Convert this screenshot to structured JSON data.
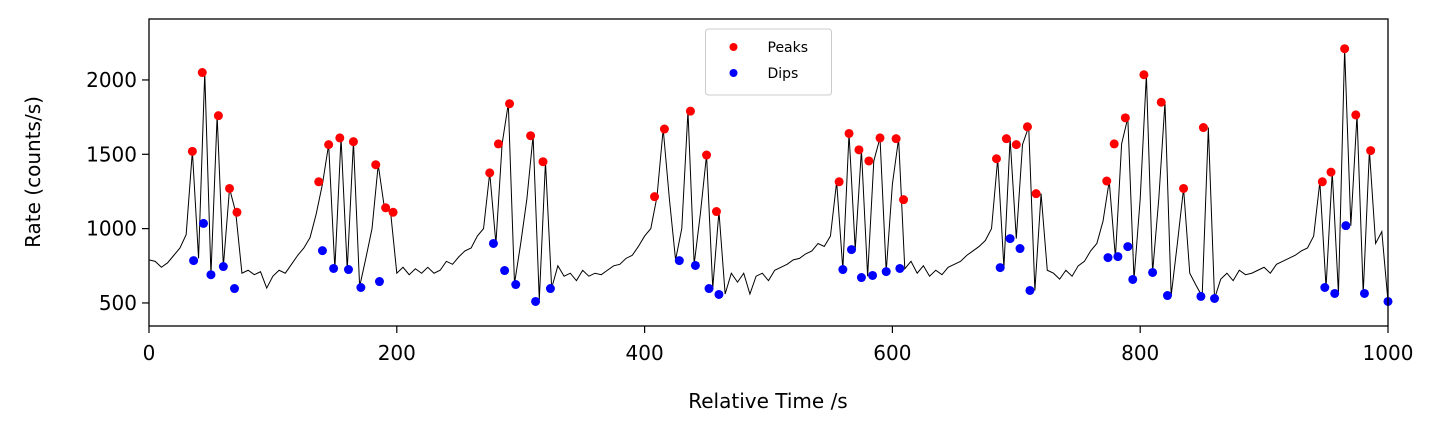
{
  "chart_data": {
    "type": "line",
    "xlabel": "Relative Time /s",
    "ylabel": "Rate (counts/s)",
    "xlim": [
      0,
      1000
    ],
    "ylim": [
      345,
      2410
    ],
    "xticks": [
      0,
      200,
      400,
      600,
      800,
      1000
    ],
    "yticks": [
      500,
      1000,
      1500,
      2000
    ],
    "legend": "upper center",
    "series": [
      {
        "type": "line",
        "color": "#000000",
        "x": [
          0,
          5,
          10,
          15,
          20,
          25,
          30,
          35,
          40,
          45,
          50,
          55,
          60,
          65,
          70,
          75,
          80,
          85,
          90,
          95,
          100,
          105,
          110,
          115,
          120,
          125,
          130,
          135,
          140,
          145,
          150,
          155,
          160,
          165,
          170,
          175,
          180,
          185,
          190,
          195,
          200,
          205,
          210,
          215,
          220,
          225,
          230,
          235,
          240,
          245,
          250,
          255,
          260,
          265,
          270,
          275,
          280,
          285,
          290,
          295,
          300,
          305,
          310,
          315,
          320,
          325,
          330,
          335,
          340,
          345,
          350,
          355,
          360,
          365,
          370,
          375,
          380,
          385,
          390,
          395,
          400,
          405,
          410,
          415,
          420,
          425,
          430,
          435,
          440,
          445,
          450,
          455,
          460,
          465,
          470,
          475,
          480,
          485,
          490,
          495,
          500,
          505,
          510,
          515,
          520,
          525,
          530,
          535,
          540,
          545,
          550,
          555,
          560,
          565,
          570,
          575,
          580,
          585,
          590,
          595,
          600,
          605,
          610,
          615,
          620,
          625,
          630,
          635,
          640,
          645,
          650,
          655,
          660,
          665,
          670,
          675,
          680,
          685,
          690,
          695,
          700,
          705,
          710,
          715,
          720,
          725,
          730,
          735,
          740,
          745,
          750,
          755,
          760,
          765,
          770,
          775,
          780,
          785,
          790,
          795,
          800,
          805,
          810,
          815,
          820,
          825,
          830,
          835,
          840,
          845,
          850,
          855,
          860,
          865,
          870,
          875,
          880,
          885,
          890,
          895,
          900,
          905,
          910,
          915,
          920,
          925,
          930,
          935,
          940,
          945,
          950,
          955,
          960,
          965,
          970,
          975,
          980,
          985,
          990,
          995,
          1000
        ],
        "values": [
          790,
          780,
          740,
          770,
          820,
          870,
          960,
          1520,
          800,
          2050,
          690,
          1760,
          745,
          1270,
          1110,
          700,
          720,
          690,
          710,
          600,
          680,
          720,
          700,
          760,
          820,
          870,
          940,
          1100,
          1300,
          1565,
          730,
          1610,
          725,
          1585,
          610,
          800,
          1000,
          1430,
          1140,
          1110,
          700,
          740,
          690,
          730,
          700,
          740,
          700,
          720,
          780,
          760,
          810,
          850,
          870,
          950,
          1000,
          1375,
          900,
          1570,
          1840,
          630,
          900,
          1200,
          1625,
          520,
          1450,
          600,
          750,
          680,
          700,
          650,
          720,
          680,
          700,
          690,
          720,
          750,
          760,
          800,
          820,
          880,
          950,
          1000,
          1215,
          1670,
          1200,
          790,
          1000,
          1790,
          760,
          1100,
          1495,
          600,
          1115,
          560,
          700,
          640,
          700,
          560,
          680,
          700,
          650,
          720,
          740,
          760,
          790,
          800,
          830,
          850,
          900,
          880,
          950,
          1315,
          725,
          1640,
          860,
          1530,
          680,
          1455,
          1610,
          711,
          1300,
          1605,
          730,
          780,
          700,
          750,
          680,
          720,
          690,
          740,
          760,
          780,
          820,
          850,
          880,
          920,
          1000,
          1470,
          738,
          1605,
          933,
          1565,
          1685,
          584,
          1235,
          720,
          700,
          660,
          720,
          680,
          750,
          780,
          850,
          900,
          1050,
          1320,
          805,
          1570,
          1745,
          658,
          1200,
          2035,
          705,
          1200,
          1850,
          550,
          900,
          1270,
          700,
          620,
          544,
          1680,
          530,
          660,
          700,
          650,
          720,
          690,
          700,
          720,
          740,
          700,
          760,
          780,
          800,
          820,
          850,
          870,
          950,
          1315,
          604,
          1380,
          564,
          2210,
          1020,
          1765,
          564,
          1525,
          900,
          980,
          510
        ]
      },
      {
        "type": "scatter",
        "name": "Peaks",
        "color": "#ff0000",
        "x": [
          35,
          43,
          56,
          65,
          71,
          137,
          145,
          154,
          165,
          183,
          191,
          197,
          275,
          282,
          291,
          308,
          318,
          408,
          416,
          437,
          450,
          458,
          557,
          565,
          573,
          581,
          590,
          603,
          609,
          684,
          692,
          700,
          709,
          716,
          773,
          779,
          788,
          803,
          817,
          835,
          851,
          947,
          954,
          965,
          974,
          986
        ],
        "values": [
          1520,
          2050,
          1760,
          1270,
          1110,
          1315,
          1565,
          1610,
          1585,
          1430,
          1140,
          1110,
          1375,
          1570,
          1840,
          1625,
          1450,
          1215,
          1670,
          1790,
          1495,
          1115,
          1315,
          1640,
          1530,
          1455,
          1610,
          1605,
          1195,
          1470,
          1605,
          1565,
          1685,
          1235,
          1320,
          1570,
          1745,
          2035,
          1850,
          1270,
          1680,
          1315,
          1380,
          2210,
          1765,
          1525
        ]
      },
      {
        "type": "scatter",
        "name": "Dips",
        "color": "#0000ff",
        "x": [
          36,
          44,
          50,
          60,
          69,
          140,
          149,
          161,
          171,
          186,
          278,
          287,
          296,
          312,
          324,
          428,
          441,
          452,
          460,
          560,
          567,
          575,
          584,
          595,
          606,
          687,
          695,
          703,
          711,
          774,
          782,
          790,
          794,
          810,
          822,
          849,
          860,
          949,
          957,
          966,
          981,
          1000
        ],
        "values": [
          785,
          1035,
          690,
          745,
          597,
          852,
          732,
          725,
          604,
          644,
          900,
          718,
          624,
          510,
          597,
          785,
          752,
          597,
          557,
          725,
          859,
          671,
          685,
          711,
          732,
          738,
          933,
          866,
          584,
          805,
          812,
          879,
          658,
          705,
          550,
          544,
          530,
          604,
          564,
          1020,
          564,
          510
        ]
      }
    ]
  }
}
